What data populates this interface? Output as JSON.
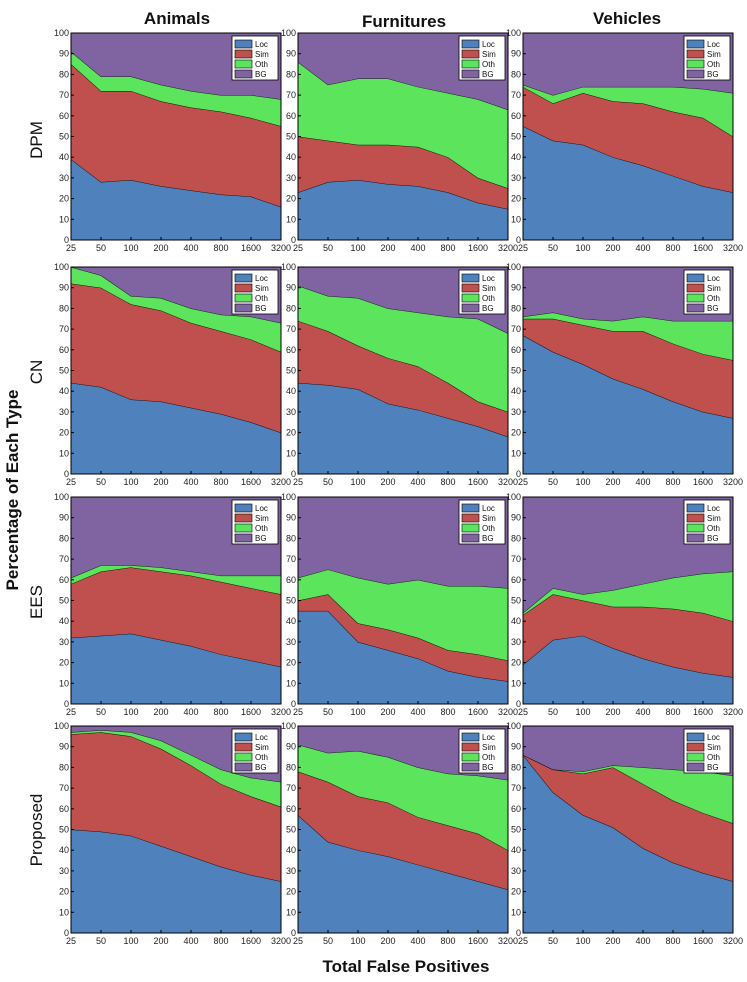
{
  "figure": {
    "column_titles": [
      "Animals",
      "Furnitures",
      "Vehicles"
    ],
    "row_labels": [
      "DPM",
      "CN",
      "EES",
      "Proposed"
    ],
    "ylabel": "Percentage of Each Type",
    "xlabel": "Total False Positives"
  },
  "colors": {
    "Loc": "#4F81BD",
    "Sim": "#C0504D",
    "Oth": "#5CE55C",
    "BG": "#8064A2"
  },
  "chart_data": [
    {
      "type": "area",
      "stacked": true,
      "row": "DPM",
      "column": "Animals",
      "x": [
        25,
        50,
        100,
        200,
        400,
        800,
        1600,
        3200
      ],
      "x_tick_labels": [
        "25",
        "50",
        "100",
        "200",
        "400",
        "800",
        "1600",
        "3200"
      ],
      "ylim": [
        0,
        100
      ],
      "y_ticks": [
        0,
        10,
        20,
        30,
        40,
        50,
        60,
        70,
        80,
        90,
        100
      ],
      "legend": [
        "Loc",
        "Sim",
        "Oth",
        "BG"
      ],
      "legend_position": "top-right",
      "series": [
        {
          "name": "Loc",
          "values": [
            39,
            28,
            29,
            26,
            24,
            22,
            21,
            16
          ]
        },
        {
          "name": "Sim",
          "values": [
            46,
            44,
            43,
            41,
            40,
            40,
            38,
            39
          ]
        },
        {
          "name": "Oth",
          "values": [
            6,
            7,
            7,
            8,
            8,
            8,
            11,
            13
          ]
        },
        {
          "name": "BG",
          "values": [
            9,
            21,
            21,
            25,
            28,
            30,
            30,
            32
          ]
        }
      ]
    },
    {
      "type": "area",
      "stacked": true,
      "row": "DPM",
      "column": "Furnitures",
      "x": [
        25,
        50,
        100,
        200,
        400,
        800,
        1600,
        3200
      ],
      "x_tick_labels": [
        "25",
        "50",
        "100",
        "200",
        "400",
        "800",
        "1600",
        "3200"
      ],
      "ylim": [
        0,
        100
      ],
      "y_ticks": [
        0,
        10,
        20,
        30,
        40,
        50,
        60,
        70,
        80,
        90,
        100
      ],
      "legend": [
        "Loc",
        "Sim",
        "Oth",
        "BG"
      ],
      "legend_position": "top-right",
      "series": [
        {
          "name": "Loc",
          "values": [
            23,
            28,
            29,
            27,
            26,
            23,
            18,
            15
          ]
        },
        {
          "name": "Sim",
          "values": [
            27,
            20,
            17,
            19,
            19,
            17,
            12,
            10
          ]
        },
        {
          "name": "Oth",
          "values": [
            36,
            27,
            32,
            32,
            29,
            31,
            38,
            38
          ]
        },
        {
          "name": "BG",
          "values": [
            14,
            25,
            22,
            22,
            26,
            29,
            32,
            37
          ]
        }
      ]
    },
    {
      "type": "area",
      "stacked": true,
      "row": "DPM",
      "column": "Vehicles",
      "x": [
        25,
        50,
        100,
        200,
        400,
        800,
        1600,
        3200
      ],
      "x_tick_labels": [
        "25",
        "50",
        "100",
        "200",
        "400",
        "800",
        "1600",
        "3200"
      ],
      "ylim": [
        0,
        100
      ],
      "y_ticks": [
        0,
        10,
        20,
        30,
        40,
        50,
        60,
        70,
        80,
        90,
        100
      ],
      "legend": [
        "Loc",
        "Sim",
        "Oth",
        "BG"
      ],
      "legend_position": "top-right",
      "series": [
        {
          "name": "Loc",
          "values": [
            55,
            48,
            46,
            40,
            36,
            31,
            26,
            23
          ]
        },
        {
          "name": "Sim",
          "values": [
            19,
            18,
            25,
            27,
            30,
            31,
            33,
            27
          ]
        },
        {
          "name": "Oth",
          "values": [
            1,
            4,
            3,
            7,
            8,
            12,
            14,
            21
          ]
        },
        {
          "name": "BG",
          "values": [
            25,
            30,
            26,
            26,
            26,
            26,
            27,
            29
          ]
        }
      ]
    },
    {
      "type": "area",
      "stacked": true,
      "row": "CN",
      "column": "Animals",
      "x": [
        25,
        50,
        100,
        200,
        400,
        800,
        1600,
        3200
      ],
      "x_tick_labels": [
        "25",
        "50",
        "100",
        "200",
        "400",
        "800",
        "1600",
        "3200"
      ],
      "ylim": [
        0,
        100
      ],
      "y_ticks": [
        0,
        10,
        20,
        30,
        40,
        50,
        60,
        70,
        80,
        90,
        100
      ],
      "legend": [
        "Loc",
        "Sim",
        "Oth",
        "BG"
      ],
      "legend_position": "top-right",
      "series": [
        {
          "name": "Loc",
          "values": [
            44,
            42,
            36,
            35,
            32,
            29,
            25,
            20
          ]
        },
        {
          "name": "Sim",
          "values": [
            48,
            48,
            46,
            44,
            41,
            40,
            40,
            39
          ]
        },
        {
          "name": "Oth",
          "values": [
            8,
            6,
            4,
            6,
            7,
            8,
            11,
            14
          ]
        },
        {
          "name": "BG",
          "values": [
            0,
            4,
            14,
            15,
            20,
            23,
            24,
            27
          ]
        }
      ]
    },
    {
      "type": "area",
      "stacked": true,
      "row": "CN",
      "column": "Furnitures",
      "x": [
        25,
        50,
        100,
        200,
        400,
        800,
        1600,
        3200
      ],
      "x_tick_labels": [
        "25",
        "50",
        "100",
        "200",
        "400",
        "800",
        "1600",
        "3200"
      ],
      "ylim": [
        0,
        100
      ],
      "y_ticks": [
        0,
        10,
        20,
        30,
        40,
        50,
        60,
        70,
        80,
        90,
        100
      ],
      "legend": [
        "Loc",
        "Sim",
        "Oth",
        "BG"
      ],
      "legend_position": "top-right",
      "series": [
        {
          "name": "Loc",
          "values": [
            44,
            43,
            41,
            34,
            31,
            27,
            23,
            18
          ]
        },
        {
          "name": "Sim",
          "values": [
            30,
            26,
            21,
            22,
            21,
            17,
            12,
            12
          ]
        },
        {
          "name": "Oth",
          "values": [
            17,
            17,
            23,
            24,
            26,
            32,
            40,
            38
          ]
        },
        {
          "name": "BG",
          "values": [
            9,
            14,
            15,
            20,
            22,
            24,
            25,
            32
          ]
        }
      ]
    },
    {
      "type": "area",
      "stacked": true,
      "row": "CN",
      "column": "Vehicles",
      "x": [
        25,
        50,
        100,
        200,
        400,
        800,
        1600,
        3200
      ],
      "x_tick_labels": [
        "25",
        "50",
        "100",
        "200",
        "400",
        "800",
        "1600",
        "3200"
      ],
      "ylim": [
        0,
        100
      ],
      "y_ticks": [
        0,
        10,
        20,
        30,
        40,
        50,
        60,
        70,
        80,
        90,
        100
      ],
      "legend": [
        "Loc",
        "Sim",
        "Oth",
        "BG"
      ],
      "legend_position": "top-right",
      "series": [
        {
          "name": "Loc",
          "values": [
            67,
            59,
            53,
            46,
            41,
            35,
            30,
            27
          ]
        },
        {
          "name": "Sim",
          "values": [
            8,
            16,
            19,
            23,
            28,
            28,
            28,
            28
          ]
        },
        {
          "name": "Oth",
          "values": [
            1,
            3,
            3,
            5,
            7,
            11,
            16,
            19
          ]
        },
        {
          "name": "BG",
          "values": [
            24,
            22,
            25,
            26,
            24,
            26,
            26,
            26
          ]
        }
      ]
    },
    {
      "type": "area",
      "stacked": true,
      "row": "EES",
      "column": "Animals",
      "x": [
        25,
        50,
        100,
        200,
        400,
        800,
        1600,
        3200
      ],
      "x_tick_labels": [
        "25",
        "50",
        "100",
        "200",
        "400",
        "800",
        "1600",
        "3200"
      ],
      "ylim": [
        0,
        100
      ],
      "y_ticks": [
        0,
        10,
        20,
        30,
        40,
        50,
        60,
        70,
        80,
        90,
        100
      ],
      "legend": [
        "Loc",
        "Sim",
        "Oth",
        "BG"
      ],
      "legend_position": "top-right",
      "series": [
        {
          "name": "Loc",
          "values": [
            32,
            33,
            34,
            31,
            28,
            24,
            21,
            18
          ]
        },
        {
          "name": "Sim",
          "values": [
            26,
            31,
            32,
            33,
            34,
            35,
            35,
            35
          ]
        },
        {
          "name": "Oth",
          "values": [
            3,
            3,
            1,
            2,
            2,
            3,
            6,
            9
          ]
        },
        {
          "name": "BG",
          "values": [
            39,
            33,
            33,
            34,
            36,
            38,
            38,
            38
          ]
        }
      ]
    },
    {
      "type": "area",
      "stacked": true,
      "row": "EES",
      "column": "Furnitures",
      "x": [
        25,
        50,
        100,
        200,
        400,
        800,
        1600,
        3200
      ],
      "x_tick_labels": [
        "25",
        "50",
        "100",
        "200",
        "400",
        "800",
        "1600",
        "3200"
      ],
      "ylim": [
        0,
        100
      ],
      "y_ticks": [
        0,
        10,
        20,
        30,
        40,
        50,
        60,
        70,
        80,
        90,
        100
      ],
      "legend": [
        "Loc",
        "Sim",
        "Oth",
        "BG"
      ],
      "legend_position": "top-right",
      "series": [
        {
          "name": "Loc",
          "values": [
            45,
            45,
            30,
            26,
            22,
            16,
            13,
            11
          ]
        },
        {
          "name": "Sim",
          "values": [
            5,
            8,
            9,
            10,
            10,
            10,
            11,
            10
          ]
        },
        {
          "name": "Oth",
          "values": [
            11,
            12,
            22,
            22,
            28,
            31,
            33,
            35
          ]
        },
        {
          "name": "BG",
          "values": [
            39,
            35,
            39,
            42,
            40,
            43,
            43,
            44
          ]
        }
      ]
    },
    {
      "type": "area",
      "stacked": true,
      "row": "EES",
      "column": "Vehicles",
      "x": [
        25,
        50,
        100,
        200,
        400,
        800,
        1600,
        3200
      ],
      "x_tick_labels": [
        "25",
        "50",
        "100",
        "200",
        "400",
        "800",
        "1600",
        "3200"
      ],
      "ylim": [
        0,
        100
      ],
      "y_ticks": [
        0,
        10,
        20,
        30,
        40,
        50,
        60,
        70,
        80,
        90,
        100
      ],
      "legend": [
        "Loc",
        "Sim",
        "Oth",
        "BG"
      ],
      "legend_position": "top-right",
      "series": [
        {
          "name": "Loc",
          "values": [
            19,
            31,
            33,
            27,
            22,
            18,
            15,
            13
          ]
        },
        {
          "name": "Sim",
          "values": [
            24,
            22,
            17,
            20,
            25,
            28,
            29,
            27
          ]
        },
        {
          "name": "Oth",
          "values": [
            1,
            3,
            3,
            8,
            11,
            15,
            19,
            24
          ]
        },
        {
          "name": "BG",
          "values": [
            56,
            44,
            47,
            45,
            42,
            39,
            37,
            36
          ]
        }
      ]
    },
    {
      "type": "area",
      "stacked": true,
      "row": "Proposed",
      "column": "Animals",
      "x": [
        25,
        50,
        100,
        200,
        400,
        800,
        1600,
        3200
      ],
      "x_tick_labels": [
        "25",
        "50",
        "100",
        "200",
        "400",
        "800",
        "1600",
        "3200"
      ],
      "ylim": [
        0,
        100
      ],
      "y_ticks": [
        0,
        10,
        20,
        30,
        40,
        50,
        60,
        70,
        80,
        90,
        100
      ],
      "legend": [
        "Loc",
        "Sim",
        "Oth",
        "BG"
      ],
      "legend_position": "top-right",
      "series": [
        {
          "name": "Loc",
          "values": [
            50,
            49,
            47,
            42,
            37,
            32,
            28,
            25
          ]
        },
        {
          "name": "Sim",
          "values": [
            46,
            48,
            48,
            47,
            44,
            40,
            38,
            36
          ]
        },
        {
          "name": "Oth",
          "values": [
            1,
            1,
            2,
            4,
            5,
            7,
            9,
            12
          ]
        },
        {
          "name": "BG",
          "values": [
            3,
            2,
            3,
            7,
            14,
            21,
            25,
            27
          ]
        }
      ]
    },
    {
      "type": "area",
      "stacked": true,
      "row": "Proposed",
      "column": "Furnitures",
      "x": [
        25,
        50,
        100,
        200,
        400,
        800,
        1600,
        3200
      ],
      "x_tick_labels": [
        "25",
        "50",
        "100",
        "200",
        "400",
        "800",
        "1600",
        "3200"
      ],
      "ylim": [
        0,
        100
      ],
      "y_ticks": [
        0,
        10,
        20,
        30,
        40,
        50,
        60,
        70,
        80,
        90,
        100
      ],
      "legend": [
        "Loc",
        "Sim",
        "Oth",
        "BG"
      ],
      "legend_position": "top-right",
      "series": [
        {
          "name": "Loc",
          "values": [
            57,
            44,
            40,
            37,
            33,
            29,
            25,
            21
          ]
        },
        {
          "name": "Sim",
          "values": [
            21,
            29,
            26,
            26,
            23,
            23,
            23,
            19
          ]
        },
        {
          "name": "Oth",
          "values": [
            13,
            14,
            22,
            22,
            24,
            25,
            28,
            34
          ]
        },
        {
          "name": "BG",
          "values": [
            9,
            13,
            12,
            15,
            20,
            23,
            24,
            26
          ]
        }
      ]
    },
    {
      "type": "area",
      "stacked": true,
      "row": "Proposed",
      "column": "Vehicles",
      "x": [
        25,
        50,
        100,
        200,
        400,
        800,
        1600,
        3200
      ],
      "x_tick_labels": [
        "25",
        "50",
        "100",
        "200",
        "400",
        "800",
        "1600",
        "3200"
      ],
      "ylim": [
        0,
        100
      ],
      "y_ticks": [
        0,
        10,
        20,
        30,
        40,
        50,
        60,
        70,
        80,
        90,
        100
      ],
      "legend": [
        "Loc",
        "Sim",
        "Oth",
        "BG"
      ],
      "legend_position": "top-right",
      "series": [
        {
          "name": "Loc",
          "values": [
            86,
            68,
            57,
            51,
            41,
            34,
            29,
            25
          ]
        },
        {
          "name": "Sim",
          "values": [
            0,
            11,
            20,
            29,
            31,
            30,
            29,
            28
          ]
        },
        {
          "name": "Oth",
          "values": [
            0,
            0,
            1,
            1,
            8,
            15,
            20,
            23
          ]
        },
        {
          "name": "BG",
          "values": [
            14,
            21,
            22,
            19,
            20,
            21,
            22,
            24
          ]
        }
      ]
    }
  ]
}
